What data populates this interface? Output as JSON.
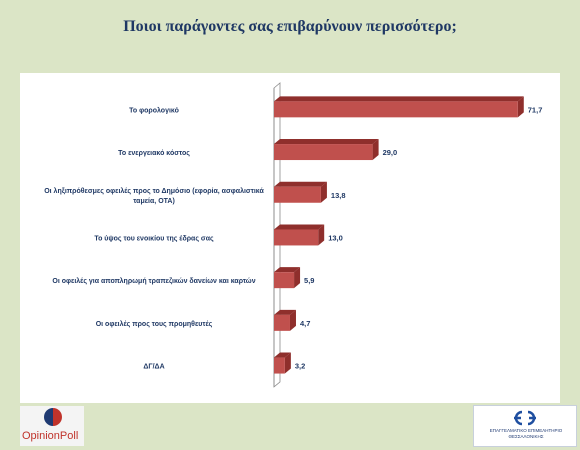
{
  "header": {
    "title": "Ποιοι παράγοντες σας επιβαρύνουν περισσότερο;"
  },
  "chart_data": {
    "type": "bar",
    "orientation": "horizontal",
    "style": "3d",
    "bar_color": "#c0504d",
    "bar_top_color": "#8f2f2c",
    "categories": [
      [
        "Το φορολογικό"
      ],
      [
        "Το ενεργειακό κόστος"
      ],
      [
        "Οι ληξιπρόθεσμες οφειλές προς το Δημόσιο (εφορία, ασφαλιστικά",
        "ταμεία, ΟΤΑ)"
      ],
      [
        "Το ύψος του ενοικίου της έδρας σας"
      ],
      [
        "Οι οφειλές για αποπληρωμή τραπεζικών δανείων και καρτών"
      ],
      [
        "Οι οφειλές προς τους προμηθευτές"
      ],
      [
        "ΔΓ/ΔΑ"
      ]
    ],
    "values": [
      71.7,
      29.0,
      13.8,
      13.0,
      5.9,
      4.7,
      3.2
    ],
    "value_labels": [
      "71,7",
      "29,0",
      "13,8",
      "13,0",
      "5,9",
      "4,7",
      "3,2"
    ],
    "xlim": [
      0,
      80
    ],
    "grid": false,
    "legend": "none"
  },
  "footer": {
    "left_logo": {
      "text": "OpinionPoll"
    },
    "right_logo": {
      "line1": "ΕΠΑΓΓΕΛΜΑΤΙΚΟ ΕΠΙΜΕΛΗΤΗΡΙΟ",
      "line2": "ΘΕΣΣΑΛΟΝΙΚΗΣ"
    }
  }
}
